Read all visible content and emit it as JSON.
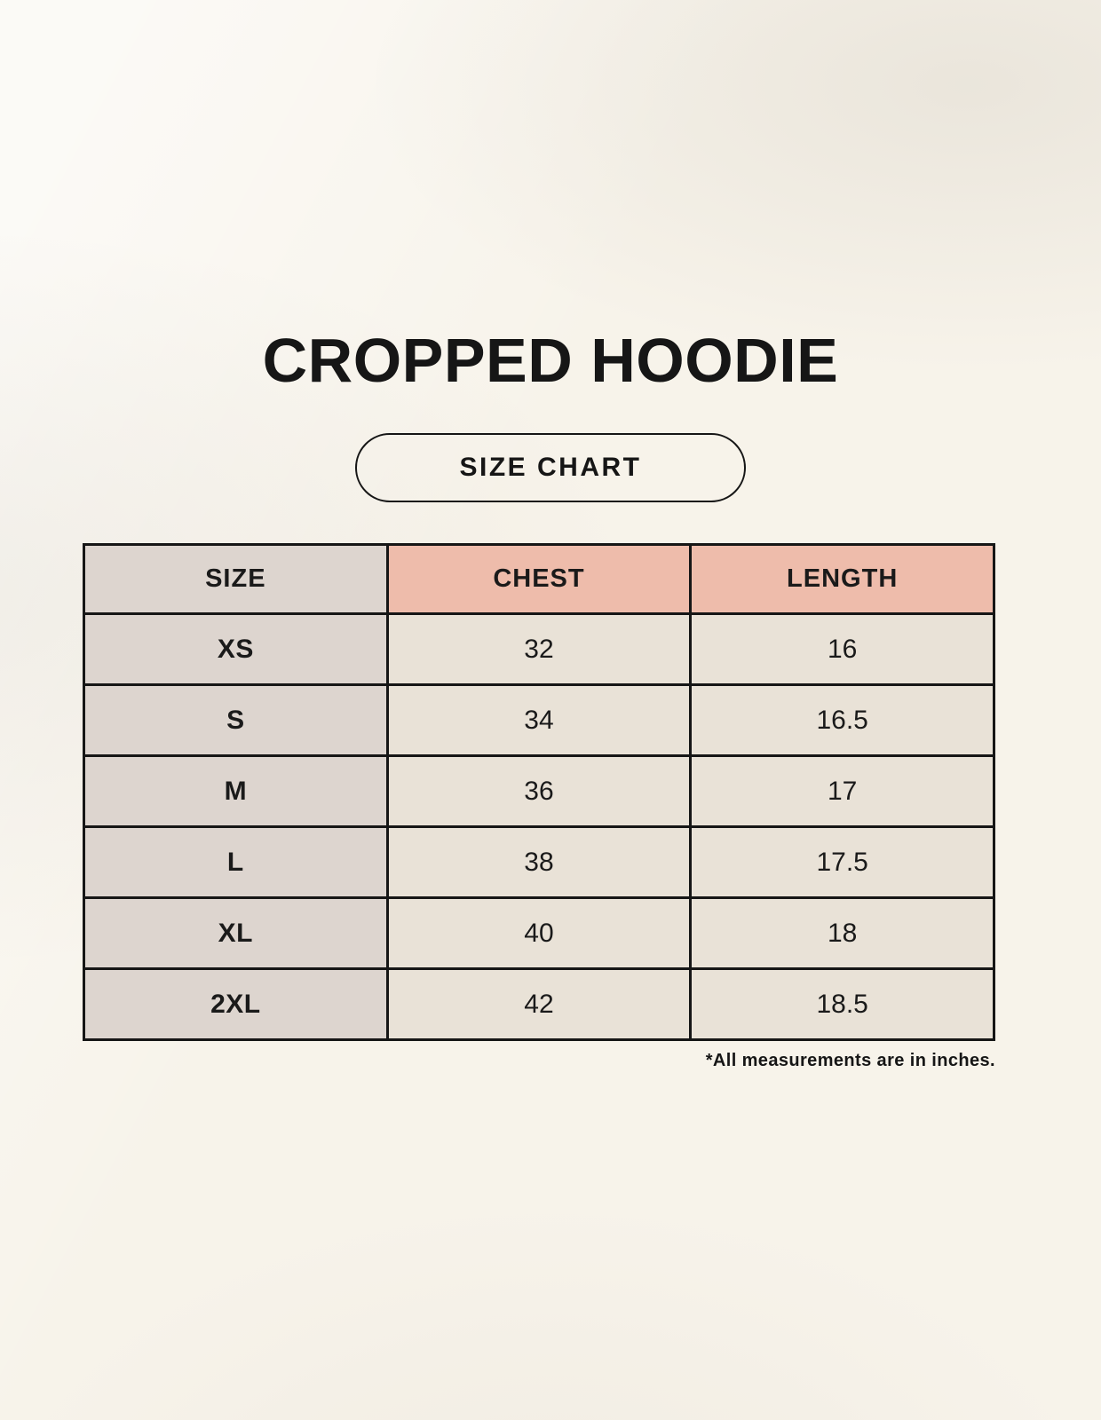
{
  "page": {
    "title": "CROPPED HOODIE",
    "badge_label": "SIZE CHART",
    "footnote": "*All measurements are in inches."
  },
  "chart_data": {
    "type": "table",
    "title": "CROPPED HOODIE",
    "subtitle": "SIZE CHART",
    "columns": [
      "SIZE",
      "CHEST",
      "LENGTH"
    ],
    "rows": [
      [
        "XS",
        "32",
        "16"
      ],
      [
        "S",
        "34",
        "16.5"
      ],
      [
        "M",
        "36",
        "17"
      ],
      [
        "L",
        "38",
        "17.5"
      ],
      [
        "XL",
        "40",
        "18"
      ],
      [
        "2XL",
        "42",
        "18.5"
      ]
    ],
    "units": "inches",
    "note": "*All measurements are in inches."
  },
  "colors": {
    "background": "#f7f3ea",
    "size_column_bg": "#ddd5cf",
    "measure_header_bg": "#eebcab",
    "cell_bg": "#e9e2d7",
    "border": "#161616",
    "text": "#161616"
  }
}
